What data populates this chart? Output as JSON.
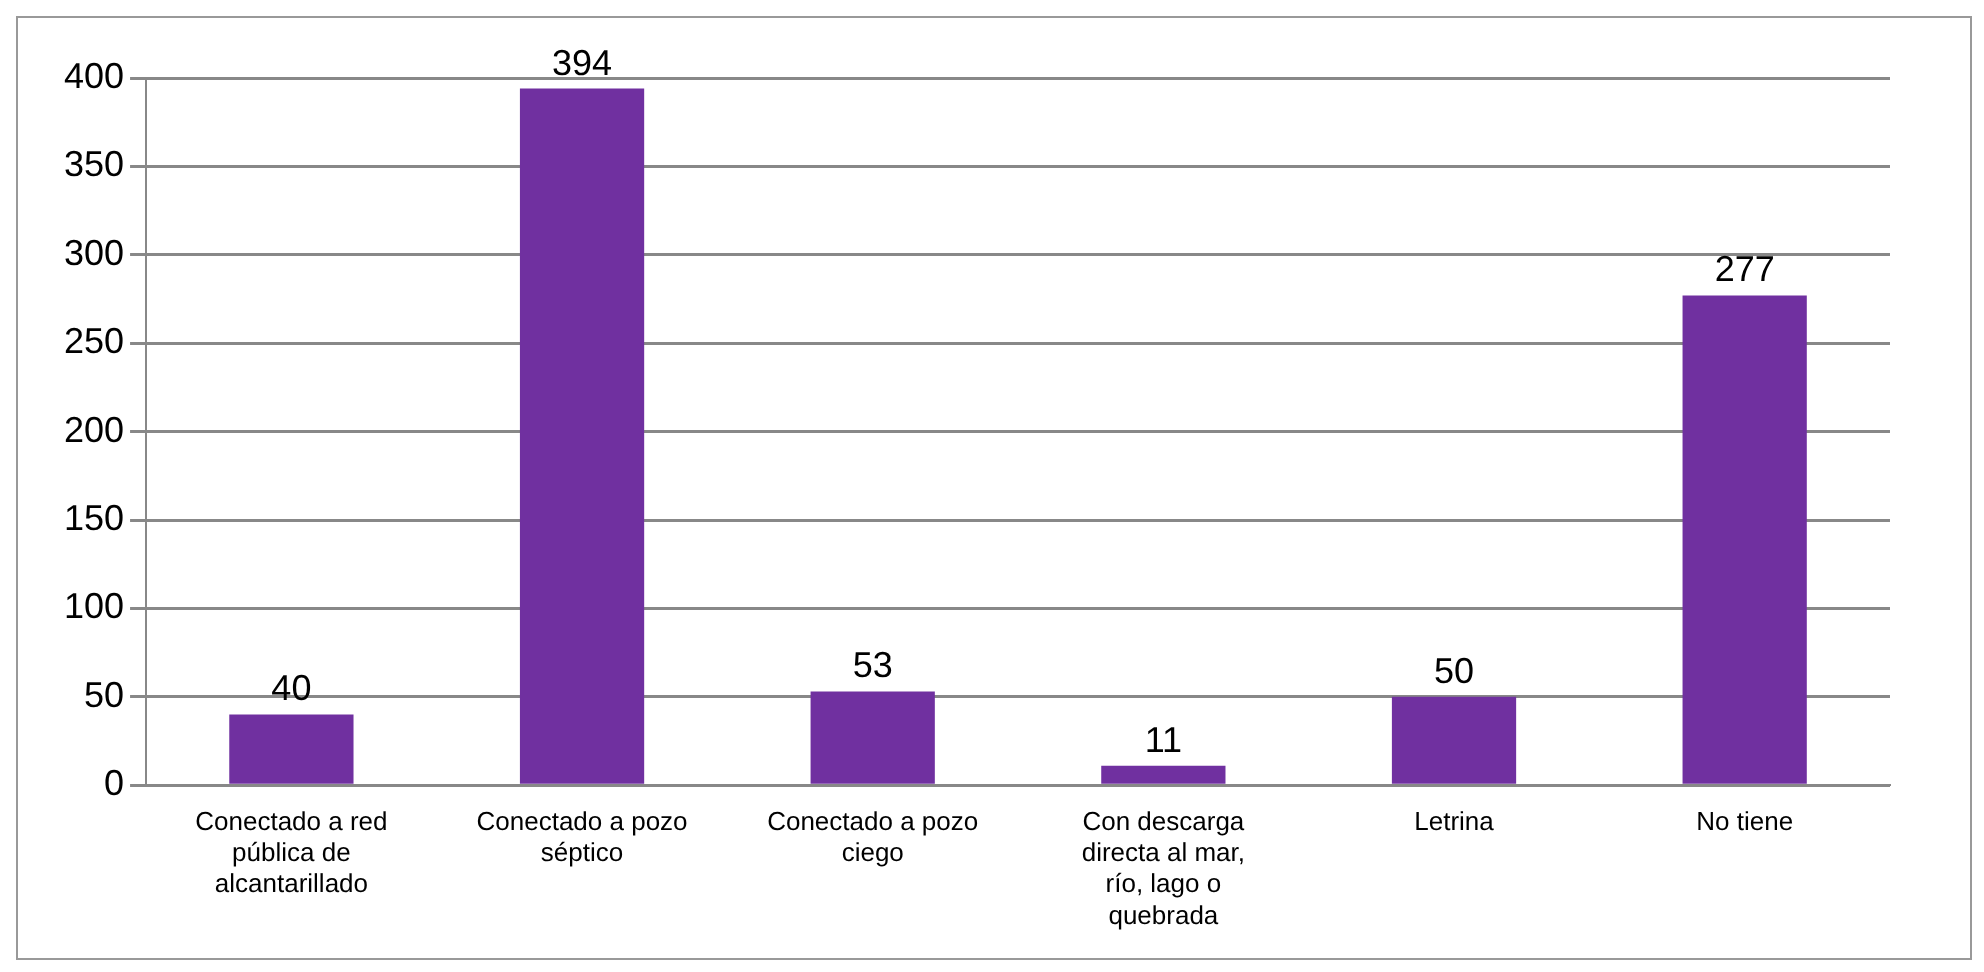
{
  "chart_data": {
    "type": "bar",
    "categories": [
      "Conectado a red pública de alcantarillado",
      "Conectado a pozo séptico",
      "Conectado a pozo ciego",
      "Con descarga directa al mar, río, lago o quebrada",
      "Letrina",
      "No tiene"
    ],
    "values": [
      40,
      394,
      53,
      11,
      50,
      277
    ],
    "color": "#7030a0",
    "ylim": [
      0,
      400
    ],
    "yticks": [
      0,
      50,
      100,
      150,
      200,
      250,
      300,
      350,
      400
    ],
    "grid": "y",
    "data_labels": true,
    "legend": false
  }
}
